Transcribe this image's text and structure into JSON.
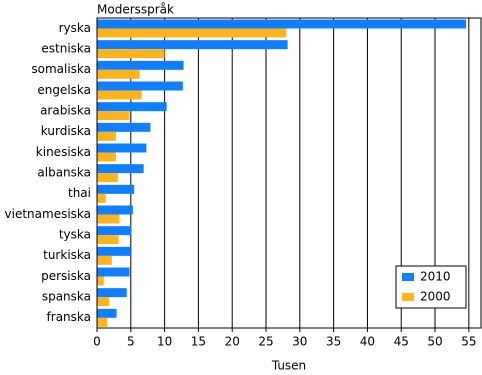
{
  "chart_data": {
    "type": "barh",
    "y_label": "Modersspråk",
    "x_label": "Tusen",
    "categories": [
      "ryska",
      "estniska",
      "somaliska",
      "engelska",
      "arabiska",
      "kurdiska",
      "kinesiska",
      "albanska",
      "thai",
      "vietnamesiska",
      "tyska",
      "turkiska",
      "persiska",
      "spanska",
      "franska"
    ],
    "series": [
      {
        "name": "2010",
        "color": "#0f7fff",
        "values": [
          54.6,
          28.2,
          12.8,
          12.7,
          10.3,
          7.9,
          7.3,
          6.9,
          5.5,
          5.3,
          5.1,
          5.0,
          4.8,
          4.4,
          2.9
        ]
      },
      {
        "name": "2000",
        "color": "#ffb41e",
        "values": [
          28.0,
          10.0,
          6.3,
          6.6,
          4.8,
          2.8,
          2.8,
          3.1,
          1.3,
          3.3,
          3.2,
          2.2,
          1.0,
          1.8,
          1.5
        ]
      }
    ],
    "xlim": [
      0,
      56.8
    ],
    "xticks": [
      0,
      5,
      10,
      15,
      20,
      25,
      30,
      35,
      40,
      45,
      50,
      55
    ],
    "grid": true,
    "legend": "lower right"
  }
}
